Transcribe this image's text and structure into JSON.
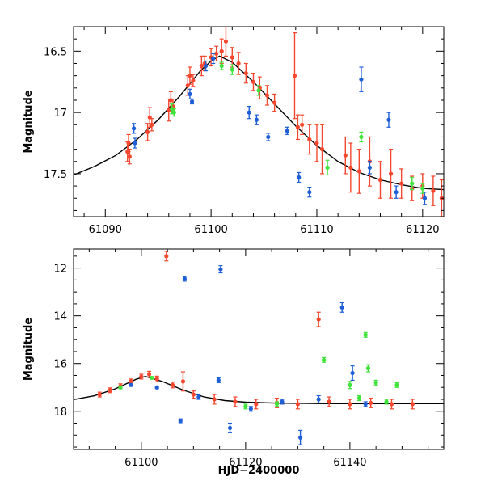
{
  "chart_data": [
    {
      "type": "scatter",
      "panel": "top",
      "title": "",
      "xlabel": "",
      "ylabel": "Magnitude",
      "xlim": [
        61087,
        61122
      ],
      "ylim": [
        17.85,
        16.3
      ],
      "y_inverted": true,
      "x_ticks": [
        61090,
        61100,
        61110,
        61120
      ],
      "x_tick_labels": [
        "61090",
        "61100",
        "61110",
        "61120"
      ],
      "y_ticks": [
        16.5,
        17,
        17.5
      ],
      "y_tick_labels": [
        "16.5",
        "17",
        "17.5"
      ],
      "model_curve": {
        "name": "model",
        "color": "#000000",
        "peak_time": 61100.8,
        "peak_mag": 16.54,
        "baseline_mag": 17.68,
        "points": [
          [
            61087,
            17.51
          ],
          [
            61089,
            17.44
          ],
          [
            61091,
            17.35
          ],
          [
            61093,
            17.22
          ],
          [
            61095,
            17.06
          ],
          [
            61097,
            16.87
          ],
          [
            61099,
            16.66
          ],
          [
            61100,
            16.58
          ],
          [
            61100.8,
            16.54
          ],
          [
            61102,
            16.59
          ],
          [
            61104,
            16.75
          ],
          [
            61106,
            16.93
          ],
          [
            61108,
            17.11
          ],
          [
            61110,
            17.27
          ],
          [
            61112,
            17.4
          ],
          [
            61114,
            17.49
          ],
          [
            61116,
            17.55
          ],
          [
            61118,
            17.59
          ],
          [
            61120,
            17.62
          ],
          [
            61122,
            17.63
          ]
        ]
      },
      "series": [
        {
          "name": "red",
          "color": "#f4472e",
          "points": [
            {
              "x": 61092.1,
              "y": 17.32,
              "err": 0.08
            },
            {
              "x": 61092.2,
              "y": 17.25,
              "err": 0.07
            },
            {
              "x": 61092.3,
              "y": 17.36,
              "err": 0.06
            },
            {
              "x": 61094.0,
              "y": 17.16,
              "err": 0.07
            },
            {
              "x": 61094.2,
              "y": 17.04,
              "err": 0.08
            },
            {
              "x": 61094.4,
              "y": 17.1,
              "err": 0.05
            },
            {
              "x": 61096.0,
              "y": 16.98,
              "err": 0.09
            },
            {
              "x": 61096.2,
              "y": 16.9,
              "err": 0.07
            },
            {
              "x": 61096.4,
              "y": 16.95,
              "err": 0.06
            },
            {
              "x": 61097.8,
              "y": 16.78,
              "err": 0.08
            },
            {
              "x": 61098.0,
              "y": 16.7,
              "err": 0.07
            },
            {
              "x": 61098.3,
              "y": 16.74,
              "err": 0.05
            },
            {
              "x": 61099.1,
              "y": 16.62,
              "err": 0.08
            },
            {
              "x": 61099.4,
              "y": 16.6,
              "err": 0.06
            },
            {
              "x": 61100.0,
              "y": 16.55,
              "err": 0.07
            },
            {
              "x": 61100.5,
              "y": 16.52,
              "err": 0.06
            },
            {
              "x": 61101.0,
              "y": 16.5,
              "err": 0.1
            },
            {
              "x": 61101.4,
              "y": 16.42,
              "err": 0.12
            },
            {
              "x": 61102.0,
              "y": 16.55,
              "err": 0.08
            },
            {
              "x": 61102.6,
              "y": 16.6,
              "err": 0.09
            },
            {
              "x": 61103.3,
              "y": 16.68,
              "err": 0.08
            },
            {
              "x": 61104.0,
              "y": 16.75,
              "err": 0.07
            },
            {
              "x": 61104.6,
              "y": 16.8,
              "err": 0.09
            },
            {
              "x": 61105.3,
              "y": 16.86,
              "err": 0.08
            },
            {
              "x": 61106.0,
              "y": 16.92,
              "err": 0.07
            },
            {
              "x": 61107.9,
              "y": 16.7,
              "err": 0.35
            },
            {
              "x": 61108.2,
              "y": 17.12,
              "err": 0.1
            },
            {
              "x": 61108.6,
              "y": 17.1,
              "err": 0.08
            },
            {
              "x": 61109.3,
              "y": 17.22,
              "err": 0.12
            },
            {
              "x": 61110.0,
              "y": 17.25,
              "err": 0.15
            },
            {
              "x": 61110.5,
              "y": 17.3,
              "err": 0.2
            },
            {
              "x": 61112.7,
              "y": 17.35,
              "err": 0.15
            },
            {
              "x": 61113.2,
              "y": 17.45,
              "err": 0.2
            },
            {
              "x": 61114.0,
              "y": 17.48,
              "err": 0.18
            },
            {
              "x": 61115.0,
              "y": 17.4,
              "err": 0.2
            },
            {
              "x": 61116.0,
              "y": 17.55,
              "err": 0.15
            },
            {
              "x": 61117.0,
              "y": 17.5,
              "err": 0.2
            },
            {
              "x": 61118.0,
              "y": 17.58,
              "err": 0.12
            },
            {
              "x": 61119.0,
              "y": 17.62,
              "err": 0.1
            },
            {
              "x": 61120.0,
              "y": 17.6,
              "err": 0.1
            },
            {
              "x": 61121.0,
              "y": 17.64,
              "err": 0.12
            },
            {
              "x": 61121.8,
              "y": 17.7,
              "err": 0.15
            }
          ]
        },
        {
          "name": "blue",
          "color": "#1e5fd6",
          "points": [
            {
              "x": 61092.7,
              "y": 17.13,
              "err": 0.04
            },
            {
              "x": 61092.8,
              "y": 17.25,
              "err": 0.04
            },
            {
              "x": 61098.0,
              "y": 16.85,
              "err": 0.04
            },
            {
              "x": 61098.2,
              "y": 16.91,
              "err": 0.02
            },
            {
              "x": 61099.5,
              "y": 16.62,
              "err": 0.04
            },
            {
              "x": 61100.2,
              "y": 16.56,
              "err": 0.04
            },
            {
              "x": 61103.6,
              "y": 17.0,
              "err": 0.05
            },
            {
              "x": 61104.3,
              "y": 17.06,
              "err": 0.04
            },
            {
              "x": 61105.4,
              "y": 17.2,
              "err": 0.03
            },
            {
              "x": 61107.2,
              "y": 17.15,
              "err": 0.03
            },
            {
              "x": 61108.3,
              "y": 17.53,
              "err": 0.04
            },
            {
              "x": 61109.3,
              "y": 17.65,
              "err": 0.04
            },
            {
              "x": 61114.2,
              "y": 16.73,
              "err": 0.1
            },
            {
              "x": 61115.0,
              "y": 17.45,
              "err": 0.05
            },
            {
              "x": 61116.8,
              "y": 17.06,
              "err": 0.06
            },
            {
              "x": 61117.5,
              "y": 17.65,
              "err": 0.05
            },
            {
              "x": 61120.2,
              "y": 17.7,
              "err": 0.05
            }
          ]
        },
        {
          "name": "green",
          "color": "#3fe33a",
          "points": [
            {
              "x": 61096.3,
              "y": 16.97,
              "err": 0.04
            },
            {
              "x": 61096.5,
              "y": 17.0,
              "err": 0.03
            },
            {
              "x": 61101.0,
              "y": 16.62,
              "err": 0.03
            },
            {
              "x": 61102.0,
              "y": 16.65,
              "err": 0.04
            },
            {
              "x": 61104.5,
              "y": 16.82,
              "err": 0.04
            },
            {
              "x": 61111.0,
              "y": 17.45,
              "err": 0.06
            },
            {
              "x": 61114.2,
              "y": 17.2,
              "err": 0.04
            },
            {
              "x": 61119.0,
              "y": 17.58,
              "err": 0.05
            },
            {
              "x": 61120.0,
              "y": 17.62,
              "err": 0.04
            }
          ]
        }
      ]
    },
    {
      "type": "scatter",
      "panel": "bottom",
      "title": "",
      "xlabel": "HJD−2400000",
      "ylabel": "Magnitude",
      "xlim": [
        61087,
        61158
      ],
      "ylim": [
        19.6,
        11.2
      ],
      "y_inverted": true,
      "x_ticks": [
        61100,
        61120,
        61140
      ],
      "x_tick_labels": [
        "61100",
        "61120",
        "61140"
      ],
      "y_ticks": [
        12,
        14,
        16,
        18
      ],
      "y_tick_labels": [
        "12",
        "14",
        "16",
        "18"
      ],
      "model_curve": {
        "name": "model",
        "color": "#000000",
        "peak_time": 61100.8,
        "peak_mag": 16.54,
        "baseline_mag": 17.68,
        "points": [
          [
            61087,
            17.51
          ],
          [
            61091,
            17.35
          ],
          [
            61095,
            17.06
          ],
          [
            61099,
            16.66
          ],
          [
            61100.8,
            16.54
          ],
          [
            61104,
            16.75
          ],
          [
            61108,
            17.11
          ],
          [
            61112,
            17.4
          ],
          [
            61116,
            17.55
          ],
          [
            61120,
            17.62
          ],
          [
            61126,
            17.66
          ],
          [
            61135,
            17.68
          ],
          [
            61145,
            17.68
          ],
          [
            61158,
            17.68
          ]
        ]
      },
      "series": [
        {
          "name": "red",
          "color": "#f4472e",
          "points": [
            {
              "x": 61092,
              "y": 17.3,
              "err": 0.1
            },
            {
              "x": 61094,
              "y": 17.12,
              "err": 0.1
            },
            {
              "x": 61096,
              "y": 16.95,
              "err": 0.1
            },
            {
              "x": 61098,
              "y": 16.75,
              "err": 0.1
            },
            {
              "x": 61100,
              "y": 16.55,
              "err": 0.1
            },
            {
              "x": 61101.5,
              "y": 16.45,
              "err": 0.12
            },
            {
              "x": 61103,
              "y": 16.65,
              "err": 0.12
            },
            {
              "x": 61104.8,
              "y": 11.5,
              "err": 0.2
            },
            {
              "x": 61106,
              "y": 16.9,
              "err": 0.12
            },
            {
              "x": 61108,
              "y": 16.75,
              "err": 0.4
            },
            {
              "x": 61110,
              "y": 17.3,
              "err": 0.15
            },
            {
              "x": 61114,
              "y": 17.5,
              "err": 0.2
            },
            {
              "x": 61118,
              "y": 17.6,
              "err": 0.2
            },
            {
              "x": 61122,
              "y": 17.7,
              "err": 0.2
            },
            {
              "x": 61126,
              "y": 17.65,
              "err": 0.2
            },
            {
              "x": 61130,
              "y": 17.7,
              "err": 0.2
            },
            {
              "x": 61134,
              "y": 14.15,
              "err": 0.3
            },
            {
              "x": 61136,
              "y": 17.6,
              "err": 0.2
            },
            {
              "x": 61140,
              "y": 17.7,
              "err": 0.2
            },
            {
              "x": 61144,
              "y": 17.65,
              "err": 0.2
            },
            {
              "x": 61148,
              "y": 17.7,
              "err": 0.2
            },
            {
              "x": 61152,
              "y": 17.7,
              "err": 0.2
            }
          ]
        },
        {
          "name": "blue",
          "color": "#1e5fd6",
          "points": [
            {
              "x": 61098,
              "y": 16.9,
              "err": 0.05
            },
            {
              "x": 61103,
              "y": 17.0,
              "err": 0.05
            },
            {
              "x": 61107.5,
              "y": 18.4,
              "err": 0.08
            },
            {
              "x": 61108.3,
              "y": 12.45,
              "err": 0.1
            },
            {
              "x": 61111,
              "y": 17.4,
              "err": 0.1
            },
            {
              "x": 61114.8,
              "y": 16.7,
              "err": 0.1
            },
            {
              "x": 61115.2,
              "y": 12.05,
              "err": 0.15
            },
            {
              "x": 61117,
              "y": 18.7,
              "err": 0.2
            },
            {
              "x": 61121,
              "y": 17.9,
              "err": 0.1
            },
            {
              "x": 61127,
              "y": 17.6,
              "err": 0.1
            },
            {
              "x": 61130.5,
              "y": 19.1,
              "err": 0.3
            },
            {
              "x": 61134,
              "y": 17.5,
              "err": 0.15
            },
            {
              "x": 61138.5,
              "y": 13.65,
              "err": 0.2
            },
            {
              "x": 61140.5,
              "y": 16.4,
              "err": 0.3
            },
            {
              "x": 61143,
              "y": 17.7,
              "err": 0.1
            }
          ]
        },
        {
          "name": "green",
          "color": "#3fe33a",
          "points": [
            {
              "x": 61096,
              "y": 17.0,
              "err": 0.05
            },
            {
              "x": 61102,
              "y": 16.6,
              "err": 0.05
            },
            {
              "x": 61120,
              "y": 17.8,
              "err": 0.1
            },
            {
              "x": 61126,
              "y": 17.7,
              "err": 0.1
            },
            {
              "x": 61135,
              "y": 15.85,
              "err": 0.1
            },
            {
              "x": 61140,
              "y": 16.9,
              "err": 0.15
            },
            {
              "x": 61141.8,
              "y": 17.45,
              "err": 0.1
            },
            {
              "x": 61143,
              "y": 14.8,
              "err": 0.1
            },
            {
              "x": 61143.5,
              "y": 16.2,
              "err": 0.15
            },
            {
              "x": 61145,
              "y": 16.8,
              "err": 0.1
            },
            {
              "x": 61147,
              "y": 17.6,
              "err": 0.1
            },
            {
              "x": 61149,
              "y": 16.9,
              "err": 0.1
            }
          ]
        }
      ]
    }
  ]
}
